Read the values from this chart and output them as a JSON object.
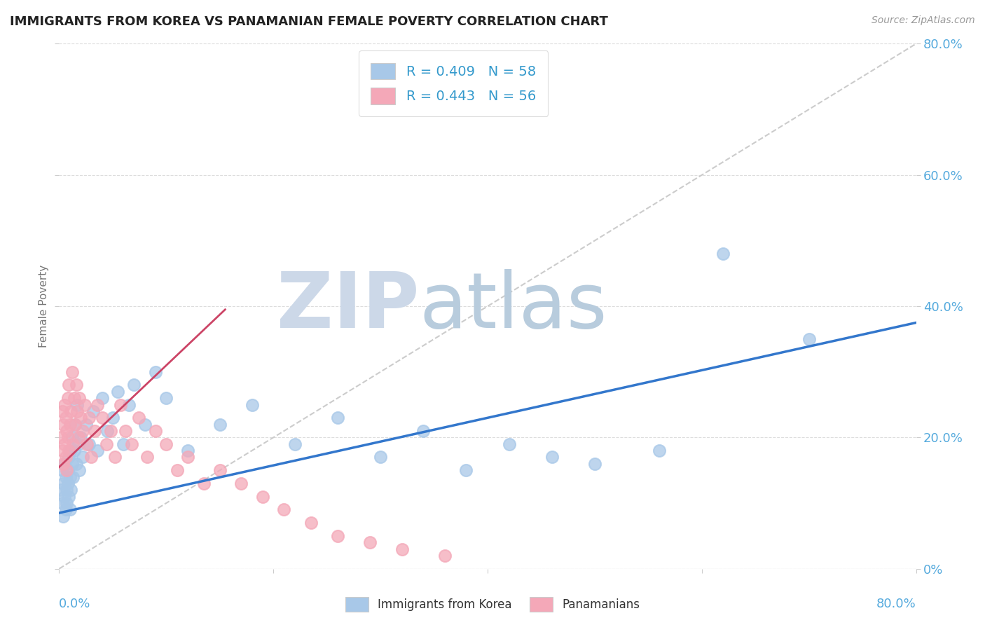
{
  "title": "IMMIGRANTS FROM KOREA VS PANAMANIAN FEMALE POVERTY CORRELATION CHART",
  "source": "Source: ZipAtlas.com",
  "ylabel": "Female Poverty",
  "legend_r1": "R = 0.409   N = 58",
  "legend_r2": "R = 0.443   N = 56",
  "blue_color": "#a8c8e8",
  "pink_color": "#f4a8b8",
  "blue_line_color": "#3377cc",
  "pink_line_color": "#cc4466",
  "gray_line_color": "#cccccc",
  "watermark_zip_color": "#ccd8e8",
  "watermark_atlas_color": "#b8cce0",
  "korea_x": [
    0.002,
    0.003,
    0.003,
    0.004,
    0.004,
    0.005,
    0.005,
    0.006,
    0.006,
    0.007,
    0.007,
    0.008,
    0.008,
    0.009,
    0.009,
    0.01,
    0.01,
    0.011,
    0.011,
    0.012,
    0.012,
    0.013,
    0.014,
    0.015,
    0.016,
    0.017,
    0.018,
    0.019,
    0.02,
    0.022,
    0.025,
    0.028,
    0.032,
    0.036,
    0.04,
    0.045,
    0.05,
    0.055,
    0.06,
    0.065,
    0.07,
    0.08,
    0.09,
    0.1,
    0.12,
    0.15,
    0.18,
    0.22,
    0.26,
    0.3,
    0.34,
    0.38,
    0.42,
    0.46,
    0.5,
    0.56,
    0.62,
    0.7
  ],
  "korea_y": [
    0.12,
    0.1,
    0.15,
    0.08,
    0.13,
    0.11,
    0.16,
    0.09,
    0.14,
    0.12,
    0.1,
    0.15,
    0.13,
    0.11,
    0.17,
    0.09,
    0.14,
    0.18,
    0.12,
    0.16,
    0.2,
    0.14,
    0.18,
    0.22,
    0.16,
    0.25,
    0.19,
    0.15,
    0.2,
    0.17,
    0.22,
    0.19,
    0.24,
    0.18,
    0.26,
    0.21,
    0.23,
    0.27,
    0.19,
    0.25,
    0.28,
    0.22,
    0.3,
    0.26,
    0.18,
    0.22,
    0.25,
    0.19,
    0.23,
    0.17,
    0.21,
    0.15,
    0.19,
    0.17,
    0.16,
    0.18,
    0.48,
    0.35
  ],
  "panama_x": [
    0.002,
    0.003,
    0.003,
    0.004,
    0.004,
    0.005,
    0.005,
    0.006,
    0.006,
    0.007,
    0.007,
    0.008,
    0.008,
    0.009,
    0.009,
    0.01,
    0.011,
    0.012,
    0.013,
    0.014,
    0.015,
    0.016,
    0.017,
    0.018,
    0.019,
    0.02,
    0.022,
    0.024,
    0.026,
    0.028,
    0.03,
    0.033,
    0.036,
    0.04,
    0.044,
    0.048,
    0.052,
    0.057,
    0.062,
    0.068,
    0.074,
    0.082,
    0.09,
    0.1,
    0.11,
    0.12,
    0.135,
    0.15,
    0.17,
    0.19,
    0.21,
    0.235,
    0.26,
    0.29,
    0.32,
    0.36
  ],
  "panama_y": [
    0.2,
    0.18,
    0.24,
    0.16,
    0.22,
    0.19,
    0.25,
    0.17,
    0.23,
    0.21,
    0.15,
    0.26,
    0.2,
    0.28,
    0.18,
    0.22,
    0.24,
    0.3,
    0.19,
    0.26,
    0.22,
    0.28,
    0.24,
    0.2,
    0.26,
    0.23,
    0.21,
    0.25,
    0.19,
    0.23,
    0.17,
    0.21,
    0.25,
    0.23,
    0.19,
    0.21,
    0.17,
    0.25,
    0.21,
    0.19,
    0.23,
    0.17,
    0.21,
    0.19,
    0.15,
    0.17,
    0.13,
    0.15,
    0.13,
    0.11,
    0.09,
    0.07,
    0.05,
    0.04,
    0.03,
    0.02
  ],
  "blue_line_x": [
    0.0,
    0.8
  ],
  "blue_line_y": [
    0.085,
    0.375
  ],
  "pink_line_x": [
    0.0,
    0.155
  ],
  "pink_line_y": [
    0.155,
    0.395
  ],
  "diag_line_x": [
    0.0,
    0.8
  ],
  "diag_line_y": [
    0.0,
    0.8
  ],
  "xlim": [
    0.0,
    0.8
  ],
  "ylim": [
    0.0,
    0.8
  ],
  "xtick_positions": [
    0.0,
    0.2,
    0.4,
    0.6,
    0.8
  ],
  "ytick_positions": [
    0.0,
    0.2,
    0.4,
    0.6,
    0.8
  ],
  "right_ytick_labels": [
    "0%",
    "20.0%",
    "40.0%",
    "60.0%",
    "80.0%"
  ]
}
